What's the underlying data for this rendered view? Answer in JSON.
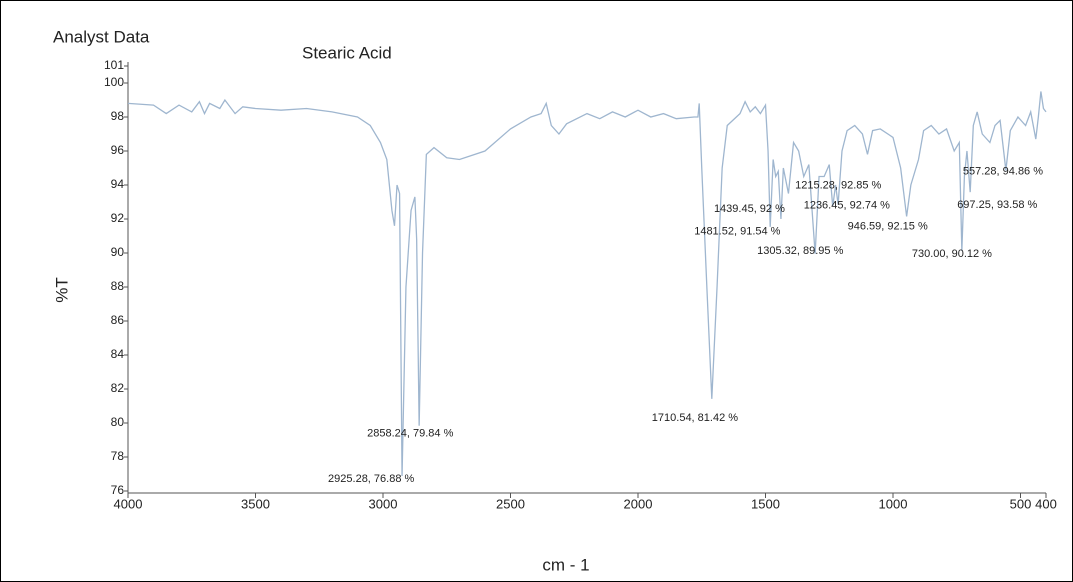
{
  "chart_data": {
    "type": "line",
    "title": "Analyst Data",
    "subtitle": "Stearic Acid",
    "x_label": "cm - 1",
    "y_label": "%T",
    "color": "#9fb6cf",
    "xlim": [
      4000,
      400
    ],
    "ylim": [
      76,
      101
    ],
    "xticks": [
      4000,
      3500,
      3000,
      2500,
      2000,
      1500,
      1000,
      500,
      400
    ],
    "yticks": [
      76,
      78,
      80,
      82,
      84,
      86,
      88,
      90,
      92,
      94,
      96,
      98,
      100,
      101
    ],
    "x": [
      4000,
      3900,
      3850,
      3800,
      3750,
      3720,
      3700,
      3680,
      3640,
      3620,
      3580,
      3550,
      3500,
      3400,
      3300,
      3200,
      3100,
      3050,
      3010,
      2985,
      2965,
      2955,
      2945,
      2935,
      2925.28,
      2910,
      2890,
      2875,
      2868,
      2858.24,
      2845,
      2830,
      2800,
      2750,
      2700,
      2600,
      2500,
      2420,
      2380,
      2360,
      2340,
      2310,
      2280,
      2200,
      2150,
      2100,
      2050,
      2000,
      1950,
      1900,
      1850,
      1780,
      1765,
      1760,
      1750,
      1730,
      1710.54,
      1690,
      1670,
      1650,
      1600,
      1580,
      1560,
      1540,
      1520,
      1500,
      1490,
      1481.52,
      1470,
      1460,
      1450,
      1439.45,
      1430,
      1410,
      1390,
      1370,
      1350,
      1330,
      1305.32,
      1290,
      1270,
      1250,
      1236.45,
      1225,
      1215.28,
      1200,
      1180,
      1150,
      1120,
      1100,
      1080,
      1050,
      1000,
      970,
      946.59,
      930,
      900,
      880,
      850,
      820,
      790,
      760,
      740,
      730,
      720,
      710,
      697.25,
      685,
      670,
      650,
      620,
      600,
      580,
      557.28,
      540,
      510,
      480,
      460,
      440,
      430,
      420,
      410,
      400
    ],
    "values": [
      98.8,
      98.7,
      98.2,
      98.7,
      98.3,
      98.9,
      98.2,
      98.8,
      98.5,
      99.0,
      98.2,
      98.6,
      98.5,
      98.4,
      98.5,
      98.3,
      98.0,
      97.5,
      96.5,
      95.5,
      92.5,
      91.6,
      94.0,
      93.5,
      76.88,
      88,
      92.5,
      93.3,
      90.8,
      79.84,
      90,
      95.8,
      96.2,
      95.6,
      95.5,
      96.0,
      97.3,
      98.0,
      98.2,
      98.8,
      97.5,
      97.0,
      97.6,
      98.2,
      97.9,
      98.3,
      98.0,
      98.4,
      98.0,
      98.2,
      97.9,
      98.0,
      98.0,
      98.8,
      95,
      88,
      81.42,
      88,
      95,
      97.5,
      98.2,
      98.9,
      98.3,
      98.6,
      98.2,
      98.7,
      96,
      91.54,
      95.5,
      94.5,
      94.8,
      92,
      95,
      93.5,
      96.5,
      96,
      94.5,
      95.2,
      89.95,
      94.5,
      94.5,
      95.2,
      92.74,
      94,
      92.85,
      96,
      97.2,
      97.5,
      97.0,
      95.8,
      97.2,
      97.3,
      96.8,
      95,
      92.15,
      94,
      95.5,
      97.2,
      97.5,
      97.0,
      97.3,
      96,
      96.5,
      90.12,
      94.5,
      96,
      93.58,
      97.5,
      98.3,
      97,
      96.5,
      97.5,
      97.8,
      94.86,
      97.2,
      98.0,
      97.5,
      98.3,
      96.7,
      98.0,
      99.5,
      98.5,
      98.3
    ],
    "annotations": [
      {
        "x": 2925.28,
        "y": 76.88,
        "label": "2925.28, 76.88 %"
      },
      {
        "x": 2858.24,
        "y": 79.84,
        "label": "2858.24, 79.84 %"
      },
      {
        "x": 1710.54,
        "y": 81.42,
        "label": "1710.54, 81.42 %"
      },
      {
        "x": 1481.52,
        "y": 91.54,
        "label": "1481.52, 91.54 %"
      },
      {
        "x": 1439.45,
        "y": 92,
        "label": "1439.45, 92 %"
      },
      {
        "x": 1305.32,
        "y": 89.95,
        "label": "1305.32, 89.95 %"
      },
      {
        "x": 1236.45,
        "y": 92.74,
        "label": "1236.45, 92.74 %"
      },
      {
        "x": 1215.28,
        "y": 92.85,
        "label": "1215.28, 92.85 %"
      },
      {
        "x": 946.59,
        "y": 92.15,
        "label": "946.59, 92.15 %"
      },
      {
        "x": 730.0,
        "y": 90.12,
        "label": "730.00, 90.12 %"
      },
      {
        "x": 697.25,
        "y": 93.58,
        "label": "697.25, 93.58 %"
      },
      {
        "x": 557.28,
        "y": 94.86,
        "label": "557.28, 94.86 %"
      }
    ]
  }
}
